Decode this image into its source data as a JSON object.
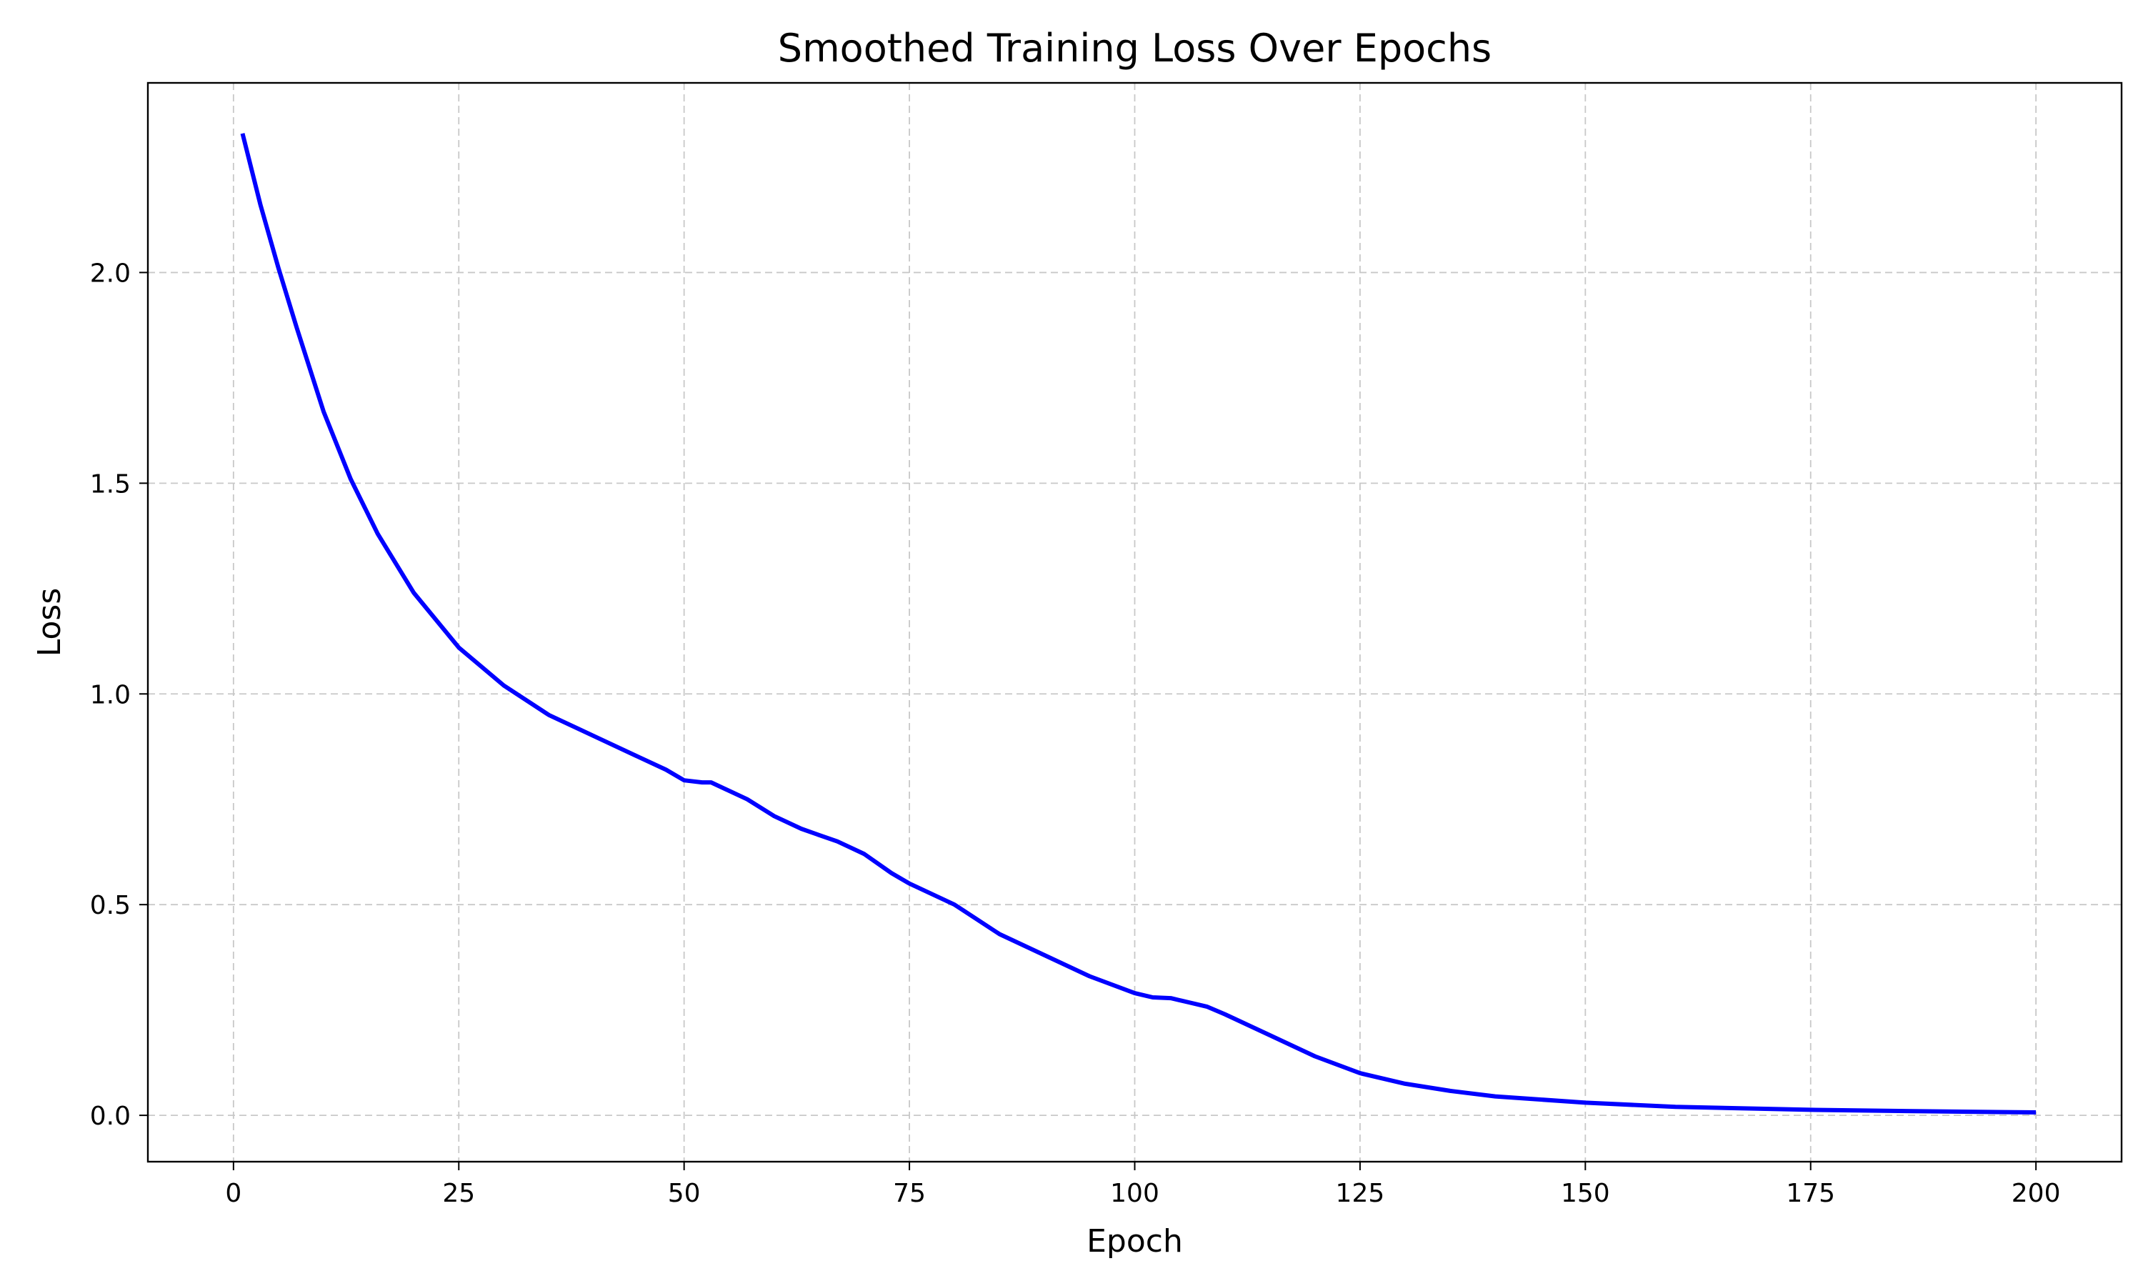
{
  "chart_data": {
    "type": "line",
    "title": "Smoothed Training Loss Over Epochs",
    "xlabel": "Epoch",
    "ylabel": "Loss",
    "xlim": [
      -9.5,
      209.5
    ],
    "ylim": [
      -0.11,
      2.45
    ],
    "grid": true,
    "line_color": "#0000ff",
    "x_ticks": [
      0,
      25,
      50,
      75,
      100,
      125,
      150,
      175,
      200
    ],
    "x_tick_labels": [
      "0",
      "25",
      "50",
      "75",
      "100",
      "125",
      "150",
      "175",
      "200"
    ],
    "y_ticks": [
      0.0,
      0.5,
      1.0,
      1.5,
      2.0
    ],
    "y_tick_labels": [
      "0.0",
      "0.5",
      "1.0",
      "1.5",
      "2.0"
    ],
    "series": [
      {
        "x": [
          1,
          3,
          5,
          7,
          10,
          13,
          16,
          20,
          25,
          30,
          35,
          40,
          45,
          48,
          50,
          52,
          53,
          57,
          60,
          63,
          65,
          67,
          70,
          73,
          75,
          80,
          85,
          90,
          95,
          100,
          102,
          104,
          106,
          108,
          110,
          115,
          120,
          125,
          130,
          135,
          140,
          150,
          160,
          175,
          190,
          200
        ],
        "y": [
          2.33,
          2.16,
          2.01,
          1.87,
          1.67,
          1.51,
          1.38,
          1.24,
          1.11,
          1.02,
          0.95,
          0.9,
          0.85,
          0.82,
          0.795,
          0.79,
          0.79,
          0.75,
          0.71,
          0.68,
          0.665,
          0.65,
          0.62,
          0.575,
          0.55,
          0.5,
          0.43,
          0.38,
          0.33,
          0.29,
          0.28,
          0.278,
          0.268,
          0.258,
          0.24,
          0.19,
          0.14,
          0.1,
          0.075,
          0.058,
          0.045,
          0.03,
          0.02,
          0.013,
          0.009,
          0.007
        ]
      }
    ]
  }
}
